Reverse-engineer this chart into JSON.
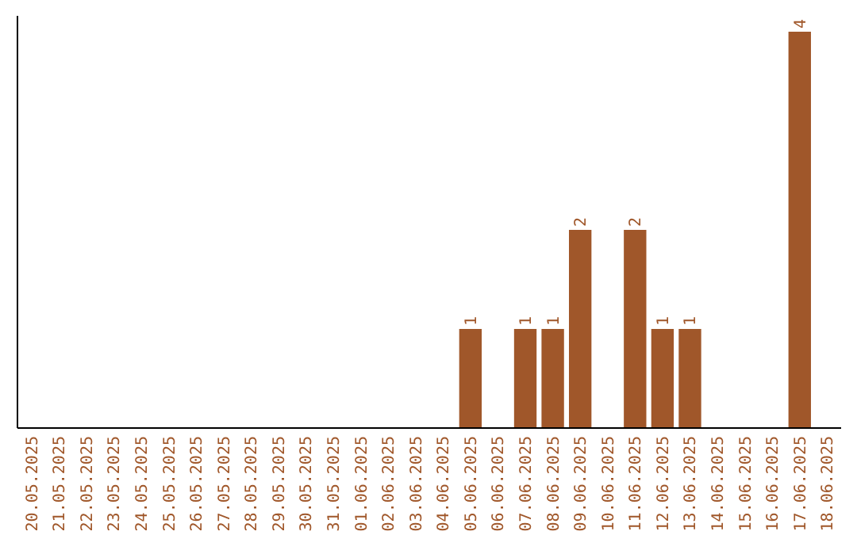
{
  "chart_data": {
    "type": "bar",
    "categories": [
      "20.05.2025",
      "21.05.2025",
      "22.05.2025",
      "23.05.2025",
      "24.05.2025",
      "25.05.2025",
      "26.05.2025",
      "27.05.2025",
      "28.05.2025",
      "29.05.2025",
      "30.05.2025",
      "31.05.2025",
      "01.06.2025",
      "02.06.2025",
      "03.06.2025",
      "04.06.2025",
      "05.06.2025",
      "06.06.2025",
      "07.06.2025",
      "08.06.2025",
      "09.06.2025",
      "10.06.2025",
      "11.06.2025",
      "12.06.2025",
      "13.06.2025",
      "14.06.2025",
      "15.06.2025",
      "16.06.2025",
      "17.06.2025",
      "18.06.2025"
    ],
    "values": [
      null,
      null,
      null,
      null,
      null,
      null,
      null,
      null,
      null,
      null,
      null,
      null,
      null,
      null,
      null,
      null,
      1,
      null,
      1,
      1,
      2,
      null,
      2,
      1,
      1,
      null,
      null,
      null,
      4,
      null
    ],
    "data_labels": true,
    "color": "#a0572a",
    "tick_labels": "x"
  }
}
